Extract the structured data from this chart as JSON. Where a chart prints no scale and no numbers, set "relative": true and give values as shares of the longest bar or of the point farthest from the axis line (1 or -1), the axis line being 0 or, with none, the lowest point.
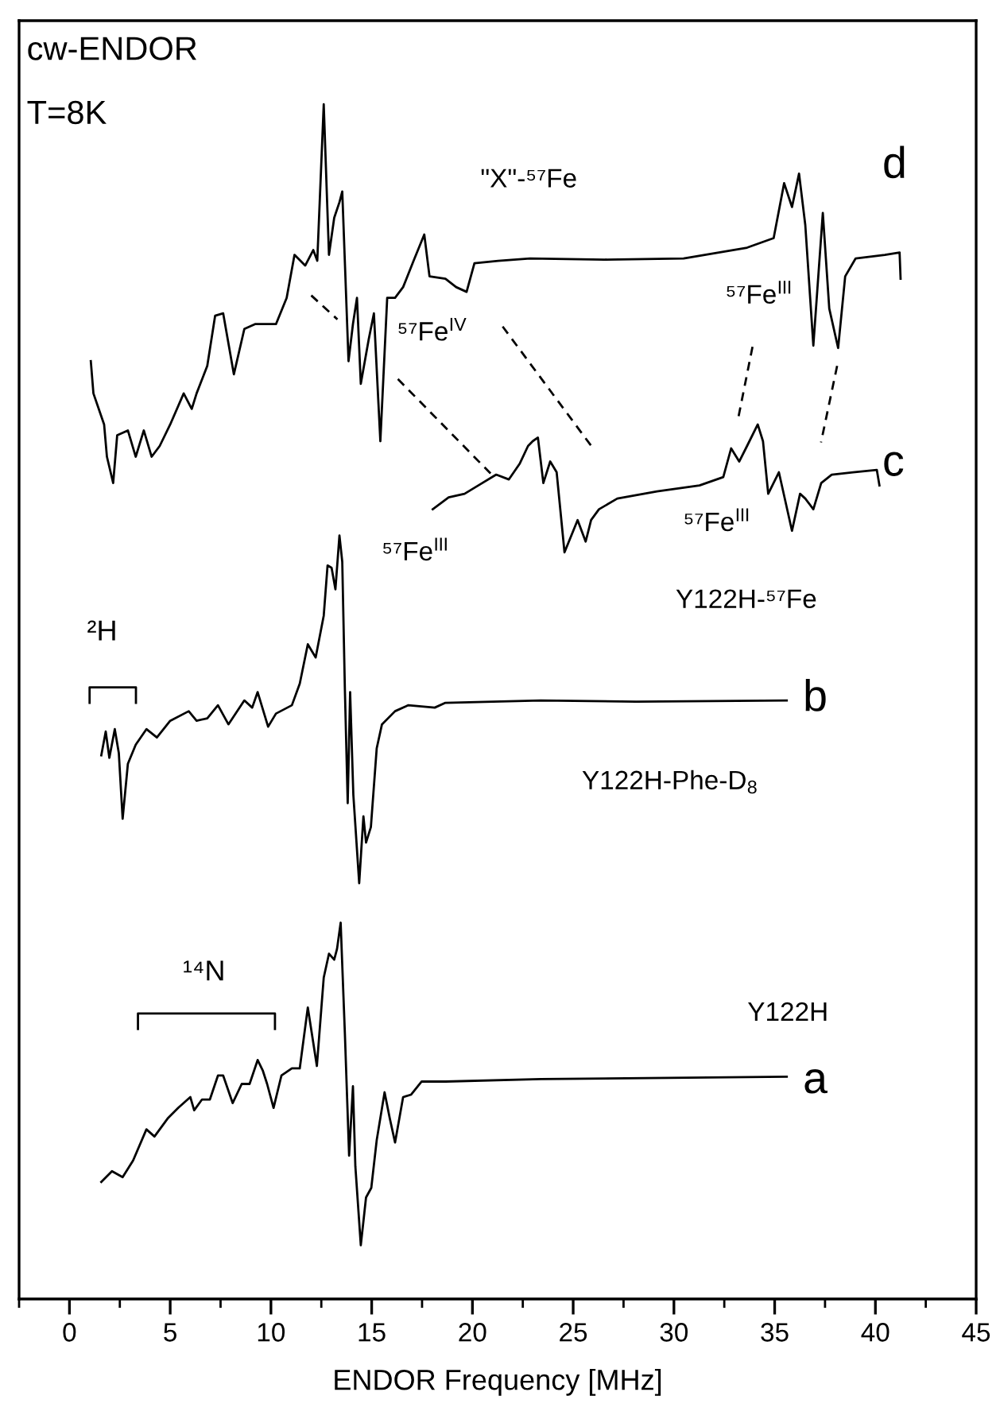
{
  "chart_data": {
    "type": "line",
    "relative": true,
    "xlabel": "ENDOR Frequency [MHz]",
    "xlim": [
      -2.5,
      45
    ],
    "xticks": [
      0,
      5,
      10,
      15,
      20,
      25,
      30,
      35,
      40,
      45
    ],
    "grid": false,
    "legend": false,
    "marker": "none",
    "line_style": "solid",
    "annotations": [
      "cw-ENDOR",
      "T=8K",
      "d",
      "⁵⁷Fe$^{IV}$",
      "⁵⁷Fe$^{III}$",
      "c",
      "⁵⁷Fe$^{III}$",
      "⁵⁷Fe$^{III}$",
      "²H",
      "b",
      "¹⁴N",
      "a"
    ],
    "series": [
      {
        "name": "\"X\"-⁵⁷Fe",
        "color": "#000000",
        "x": [
          1.06,
          1.19,
          1.72,
          1.86,
          2.17,
          2.37,
          2.9,
          3.29,
          3.69,
          4.08,
          4.48,
          5.0,
          5.67,
          6.07,
          6.31,
          6.84,
          7.23,
          7.63,
          8.16,
          8.68,
          9.21,
          10.25,
          10.78,
          11.17,
          11.7,
          12.1,
          12.3,
          12.62,
          12.88,
          13.14,
          13.4,
          13.54,
          13.85,
          14.07,
          14.27,
          14.46,
          14.85,
          15.11,
          15.43,
          15.77,
          16.16,
          16.56,
          17.08,
          17.61,
          17.87,
          18.66,
          19.19,
          19.71,
          20.1,
          21.28,
          22.86,
          26.56,
          30.48,
          33.63,
          34.95,
          35.47,
          35.86,
          36.21,
          36.52,
          36.92,
          37.39,
          37.71,
          38.15,
          38.5,
          39.02,
          40.47,
          41.2,
          41.25
        ],
        "values": [
          0.785,
          0.758,
          0.732,
          0.705,
          0.683,
          0.723,
          0.727,
          0.705,
          0.727,
          0.705,
          0.714,
          0.732,
          0.758,
          0.745,
          0.758,
          0.781,
          0.823,
          0.825,
          0.774,
          0.812,
          0.816,
          0.816,
          0.838,
          0.874,
          0.865,
          0.878,
          0.869,
          1.0,
          0.874,
          0.905,
          0.918,
          0.927,
          0.785,
          0.816,
          0.838,
          0.766,
          0.803,
          0.825,
          0.718,
          0.838,
          0.838,
          0.847,
          0.869,
          0.891,
          0.856,
          0.854,
          0.847,
          0.843,
          0.867,
          0.869,
          0.871,
          0.87,
          0.871,
          0.88,
          0.888,
          0.934,
          0.914,
          0.942,
          0.899,
          0.798,
          0.909,
          0.829,
          0.796,
          0.856,
          0.871,
          0.874,
          0.876,
          0.854
        ]
      },
      {
        "name": "Y122H-⁵⁷Fe",
        "color": "#000000",
        "x": [
          18.03,
          18.82,
          19.61,
          20.39,
          21.18,
          21.81,
          22.34,
          22.76,
          22.99,
          23.25,
          23.52,
          23.86,
          24.18,
          24.57,
          25.22,
          25.62,
          25.89,
          26.28,
          27.19,
          29.16,
          31.27,
          32.45,
          32.84,
          33.24,
          33.63,
          34.16,
          34.42,
          34.68,
          35.21,
          35.86,
          36.26,
          36.52,
          36.92,
          37.31,
          37.83,
          38.89,
          40.07,
          40.2
        ],
        "values": [
          0.661,
          0.671,
          0.674,
          0.682,
          0.69,
          0.686,
          0.699,
          0.714,
          0.718,
          0.721,
          0.683,
          0.701,
          0.692,
          0.625,
          0.652,
          0.634,
          0.652,
          0.661,
          0.67,
          0.676,
          0.681,
          0.688,
          0.712,
          0.701,
          0.714,
          0.732,
          0.718,
          0.674,
          0.692,
          0.643,
          0.674,
          0.67,
          0.661,
          0.683,
          0.69,
          0.692,
          0.694,
          0.681
        ]
      },
      {
        "name": "Y122H-Phe-D$_{8}$",
        "color": "#000000",
        "x": [
          1.58,
          1.8,
          1.98,
          2.25,
          2.45,
          2.64,
          2.9,
          3.29,
          3.82,
          4.34,
          5.0,
          5.92,
          6.31,
          6.84,
          7.37,
          7.89,
          8.68,
          9.07,
          9.34,
          9.86,
          10.25,
          11.04,
          11.43,
          11.83,
          12.22,
          12.62,
          12.81,
          13.01,
          13.2,
          13.4,
          13.54,
          13.67,
          13.81,
          13.93,
          14.09,
          14.38,
          14.59,
          14.72,
          14.96,
          15.25,
          15.51,
          16.16,
          16.82,
          18.13,
          18.66,
          23.39,
          28.12,
          35.6
        ],
        "values": [
          0.455,
          0.475,
          0.453,
          0.477,
          0.457,
          0.402,
          0.448,
          0.464,
          0.477,
          0.47,
          0.484,
          0.492,
          0.484,
          0.486,
          0.497,
          0.481,
          0.501,
          0.495,
          0.508,
          0.479,
          0.49,
          0.497,
          0.515,
          0.548,
          0.537,
          0.572,
          0.614,
          0.612,
          0.594,
          0.639,
          0.617,
          0.51,
          0.415,
          0.508,
          0.422,
          0.348,
          0.404,
          0.382,
          0.395,
          0.461,
          0.481,
          0.492,
          0.497,
          0.495,
          0.499,
          0.501,
          0.5,
          0.501
        ]
      },
      {
        "name": "Y122H",
        "color": "#000000",
        "x": [
          1.58,
          2.11,
          2.64,
          3.16,
          3.82,
          4.22,
          4.87,
          5.4,
          6.0,
          6.19,
          6.58,
          6.97,
          7.37,
          7.63,
          8.1,
          8.55,
          8.94,
          9.34,
          9.6,
          9.81,
          10.13,
          10.52,
          11.04,
          11.43,
          11.83,
          12.28,
          12.62,
          12.88,
          13.14,
          13.28,
          13.46,
          13.67,
          13.88,
          14.07,
          14.19,
          14.46,
          14.72,
          14.98,
          15.25,
          15.64,
          15.9,
          16.16,
          16.56,
          16.95,
          17.48,
          18.66,
          23.39,
          29.7,
          35.6
        ],
        "values": [
          0.098,
          0.107,
          0.102,
          0.116,
          0.142,
          0.136,
          0.151,
          0.16,
          0.169,
          0.158,
          0.167,
          0.167,
          0.187,
          0.187,
          0.164,
          0.18,
          0.18,
          0.2,
          0.191,
          0.18,
          0.16,
          0.187,
          0.193,
          0.193,
          0.244,
          0.195,
          0.269,
          0.289,
          0.284,
          0.293,
          0.315,
          0.222,
          0.12,
          0.178,
          0.111,
          0.045,
          0.085,
          0.093,
          0.133,
          0.173,
          0.151,
          0.131,
          0.169,
          0.171,
          0.182,
          0.182,
          0.184,
          0.185,
          0.186
        ]
      }
    ]
  }
}
